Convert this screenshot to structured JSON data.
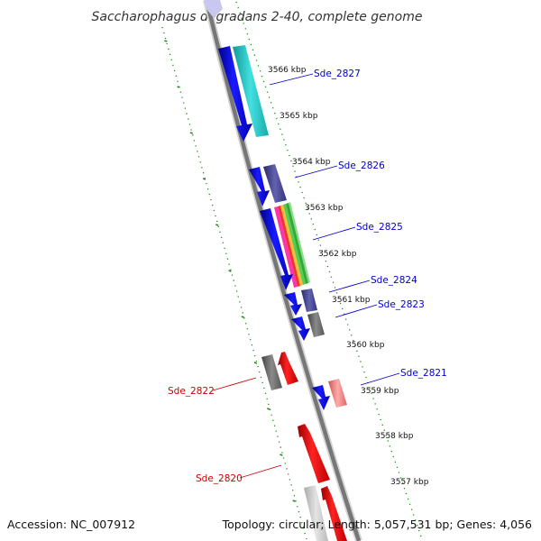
{
  "title": "Saccharophagus degradans 2-40, complete genome",
  "footer": {
    "accession": "Accession: NC_007912",
    "summary": "Topology: circular; Length: 5,057,531 bp; Genes: 4,056"
  },
  "ticks": [
    {
      "label": "3566 kbp"
    },
    {
      "label": "3565 kbp"
    },
    {
      "label": "3564 kbp"
    },
    {
      "label": "3563 kbp"
    },
    {
      "label": "3562 kbp"
    },
    {
      "label": "3561 kbp"
    },
    {
      "label": "3560 kbp"
    },
    {
      "label": "3559 kbp"
    },
    {
      "label": "3558 kbp"
    },
    {
      "label": "3557 kbp"
    }
  ],
  "genes": [
    {
      "name": "Sde_2827",
      "strand": "forward",
      "color": "#0000cc"
    },
    {
      "name": "Sde_2826",
      "strand": "forward",
      "color": "#0000cc"
    },
    {
      "name": "Sde_2825",
      "strand": "forward",
      "color": "#0000cc"
    },
    {
      "name": "Sde_2824",
      "strand": "forward",
      "color": "#0000cc"
    },
    {
      "name": "Sde_2823",
      "strand": "forward",
      "color": "#0000cc"
    },
    {
      "name": "Sde_2821",
      "strand": "forward",
      "color": "#0000cc"
    },
    {
      "name": "Sde_2822",
      "strand": "reverse",
      "color": "#cc0000"
    },
    {
      "name": "Sde_2820",
      "strand": "reverse",
      "color": "#cc0000"
    }
  ],
  "colors": {
    "backbone": "#777777",
    "forward": "#0000ee",
    "reverse": "#ee0000",
    "cog_cyan": "#22cccc",
    "cog_purple": "#4a4a99",
    "cog_gray": "#666666",
    "cog_pink": "#ee7777",
    "dotted_ring": "#1a8a1a",
    "tick_green": "#228822"
  }
}
